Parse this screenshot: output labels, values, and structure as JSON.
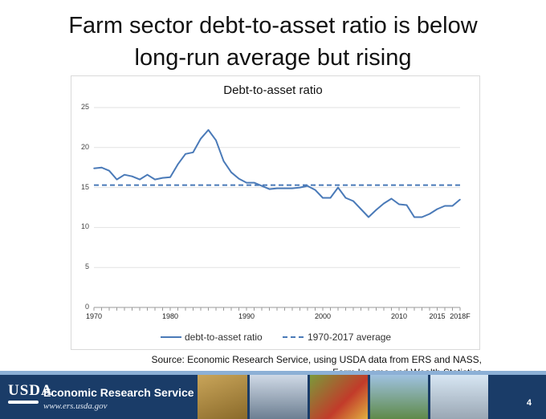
{
  "slide": {
    "title_line1": "Farm sector debt-to-asset ratio is below",
    "title_line2": "long-run average but rising",
    "source_line1": "Source: Economic Research Service, using USDA data from ERS and NASS,",
    "source_line2": "Farm Income and Wealth Statistics",
    "page_number": "4"
  },
  "footer": {
    "logo_text": "USDA",
    "agency_name": "Economic Research Service",
    "url": "www.ers.usda.gov"
  },
  "colors": {
    "series_line": "#4a7ab8",
    "footer_bg": "#1a3c68"
  },
  "chart_data": {
    "type": "line",
    "title": "Debt-to-asset ratio",
    "xlabel": "",
    "ylabel": "",
    "xlim": [
      1970,
      2018
    ],
    "ylim": [
      0,
      25
    ],
    "y_ticks": [
      "0",
      "5",
      "10",
      "15",
      "20",
      "25"
    ],
    "x_ticks": [
      {
        "value": 1970,
        "label": "1970"
      },
      {
        "value": 1980,
        "label": "1980"
      },
      {
        "value": 1990,
        "label": "1990"
      },
      {
        "value": 2000,
        "label": "2000"
      },
      {
        "value": 2010,
        "label": "2010"
      },
      {
        "value": 2015,
        "label": "2015"
      },
      {
        "value": 2018,
        "label": "2018F"
      }
    ],
    "grid": true,
    "legend_position": "bottom",
    "series": [
      {
        "name": "debt-to-asset ratio",
        "style": "solid",
        "x": [
          1970,
          1971,
          1972,
          1973,
          1974,
          1975,
          1976,
          1977,
          1978,
          1979,
          1980,
          1981,
          1982,
          1983,
          1984,
          1985,
          1986,
          1987,
          1988,
          1989,
          1990,
          1991,
          1992,
          1993,
          1994,
          1995,
          1996,
          1997,
          1998,
          1999,
          2000,
          2001,
          2002,
          2003,
          2004,
          2005,
          2006,
          2007,
          2008,
          2009,
          2010,
          2011,
          2012,
          2013,
          2014,
          2015,
          2016,
          2017,
          2018
        ],
        "values": [
          17.4,
          17.5,
          17.1,
          16.0,
          16.6,
          16.4,
          16.0,
          16.6,
          16.0,
          16.2,
          16.3,
          17.9,
          19.2,
          19.4,
          21.1,
          22.2,
          20.9,
          18.3,
          16.9,
          16.1,
          15.6,
          15.6,
          15.2,
          14.8,
          14.9,
          14.9,
          14.9,
          15.0,
          15.2,
          14.7,
          13.7,
          13.7,
          15.0,
          13.7,
          13.3,
          12.3,
          11.3,
          12.2,
          13.0,
          13.6,
          12.9,
          12.8,
          11.3,
          11.3,
          11.7,
          12.3,
          12.7,
          12.7,
          13.5
        ]
      },
      {
        "name": "1970-2017 average",
        "style": "dashed",
        "x": [
          1970,
          2018
        ],
        "values": [
          15.3,
          15.3
        ]
      }
    ]
  }
}
